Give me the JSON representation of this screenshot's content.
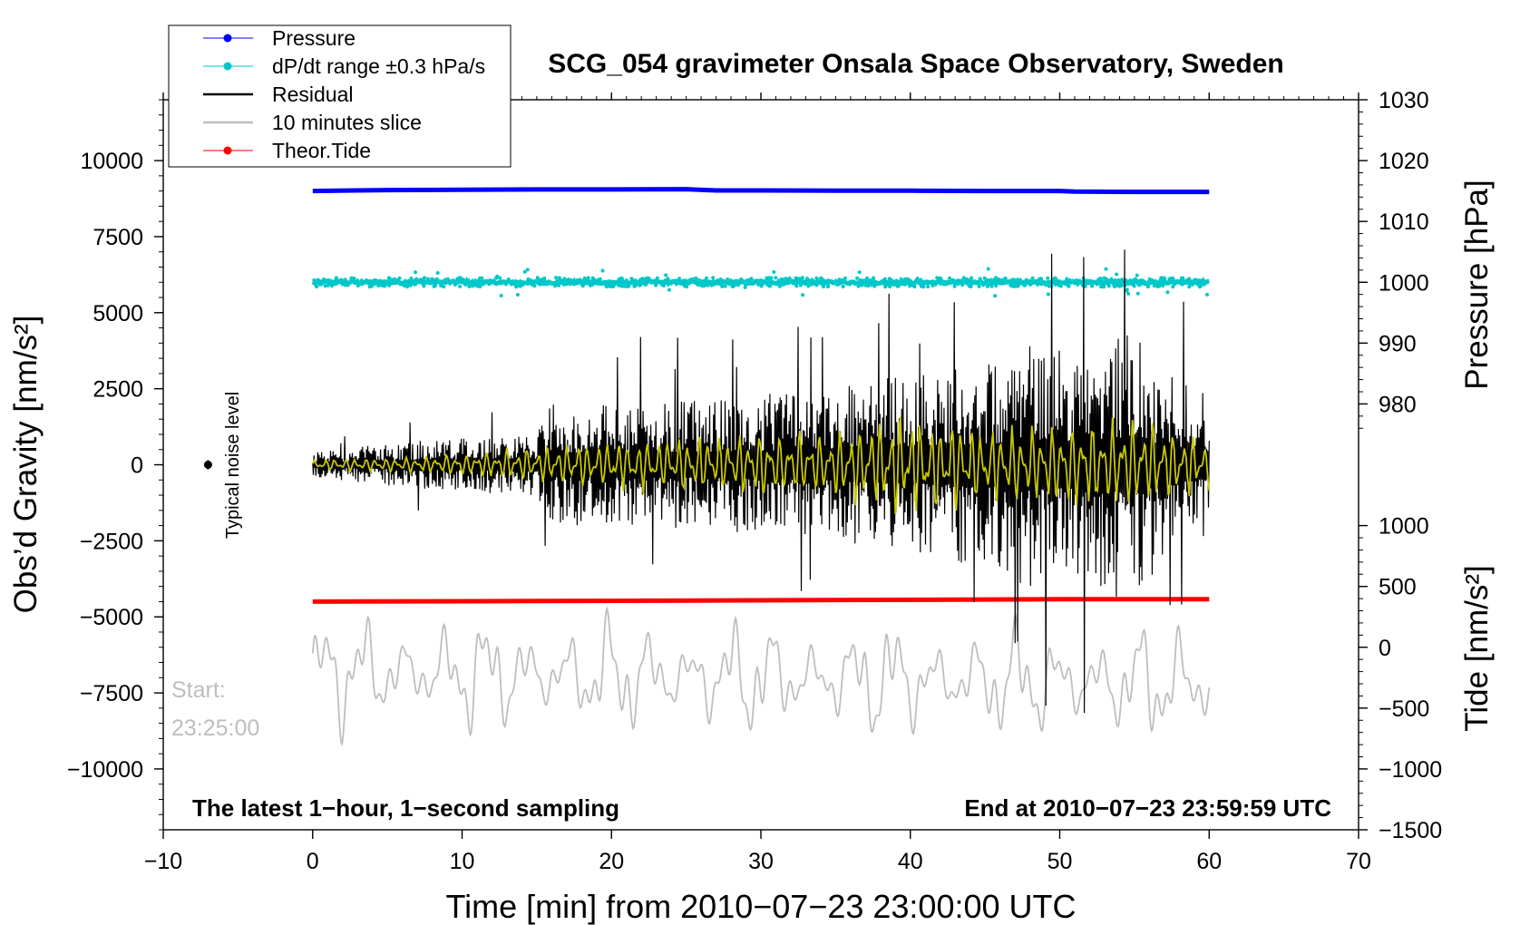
{
  "chart_data": {
    "type": "line",
    "title": "SCG_054 gravimeter Onsala Space Observatory, Sweden",
    "xlabel": "Time [min] from 2010−07−23 23:00:00 UTC",
    "ylabel_left": "Obs’d Gravity [nm/s²]",
    "ylabel_right_top": "Pressure [hPa]",
    "ylabel_right_bottom": "Tide [nm/s²]",
    "xlim": [
      -10,
      70
    ],
    "ylim_left": [
      -12000,
      12000
    ],
    "x_ticks": [
      {
        "v": -10,
        "label": "−10"
      },
      {
        "v": 0,
        "label": "0"
      },
      {
        "v": 10,
        "label": "10"
      },
      {
        "v": 20,
        "label": "20"
      },
      {
        "v": 30,
        "label": "30"
      },
      {
        "v": 40,
        "label": "40"
      },
      {
        "v": 50,
        "label": "50"
      },
      {
        "v": 60,
        "label": "60"
      },
      {
        "v": 70,
        "label": "70"
      }
    ],
    "y_ticks_left": [
      {
        "v": 10000,
        "label": "10000"
      },
      {
        "v": 7500,
        "label": "7500"
      },
      {
        "v": 5000,
        "label": "5000"
      },
      {
        "v": 2500,
        "label": "2500"
      },
      {
        "v": 0,
        "label": "0"
      },
      {
        "v": -2500,
        "label": "−2500"
      },
      {
        "v": -5000,
        "label": "−5000"
      },
      {
        "v": -7500,
        "label": "−7500"
      },
      {
        "v": -10000,
        "label": "−10000"
      }
    ],
    "pressure_axis": {
      "ticks": [
        {
          "v": 1030,
          "label": "1030"
        },
        {
          "v": 1020,
          "label": "1020"
        },
        {
          "v": 1010,
          "label": "1010"
        },
        {
          "v": 1000,
          "label": "1000"
        },
        {
          "v": 990,
          "label": "990"
        },
        {
          "v": 980,
          "label": "980"
        }
      ],
      "map": {
        "hpa": [
          1000,
          1030
        ],
        "left_units": [
          6000,
          12000
        ]
      }
    },
    "tide_axis": {
      "ticks": [
        {
          "v": 1000,
          "label": "1000"
        },
        {
          "v": 500,
          "label": "500"
        },
        {
          "v": 0,
          "label": "0"
        },
        {
          "v": -500,
          "label": "−500"
        },
        {
          "v": -1000,
          "label": "−1000"
        },
        {
          "v": -1500,
          "label": "−1500"
        }
      ],
      "map": {
        "nms2": [
          -1500,
          1000
        ],
        "left_units": [
          -12000,
          -2000
        ]
      }
    },
    "legend": {
      "placement": "top-left",
      "entries": [
        {
          "name": "Pressure",
          "color": "#0000ff",
          "marker": true
        },
        {
          "name": "dP/dt range ±0.3 hPa/s",
          "color": "#00c8c8",
          "marker": true
        },
        {
          "name": "Residual",
          "color": "#000000",
          "marker": false
        },
        {
          "name": "10 minutes slice",
          "color": "#bebebe",
          "marker": false
        },
        {
          "name": "Theor.Tide",
          "color": "#ff0000",
          "marker": true
        }
      ]
    },
    "series": [
      {
        "name": "Pressure",
        "color": "#0000ff",
        "x": [
          0,
          5,
          10,
          15,
          20,
          25,
          27,
          30,
          35,
          40,
          45,
          50,
          51,
          55,
          60
        ],
        "values": [
          9000,
          9030,
          9040,
          9050,
          9050,
          9060,
          9020,
          9020,
          9010,
          9010,
          9000,
          9000,
          8980,
          8970,
          8970
        ]
      },
      {
        "name": "dP/dt range ±0.3 hPa/s",
        "color": "#00c8c8",
        "x": [
          0,
          60
        ],
        "values": [
          6000,
          6000
        ],
        "spread": 150
      },
      {
        "name": "Residual",
        "color": "#000000",
        "x": [
          0,
          5,
          10,
          15,
          16,
          20,
          25,
          30,
          34,
          38,
          40,
          43,
          46,
          48,
          50,
          52,
          54,
          56,
          58,
          60
        ],
        "values": [
          0,
          0,
          0,
          0,
          0,
          0,
          0,
          0,
          0,
          0,
          0,
          0,
          0,
          0,
          0,
          0,
          0,
          0,
          0,
          0
        ],
        "envelope": [
          400,
          700,
          900,
          1000,
          2000,
          2000,
          2100,
          2300,
          2500,
          2800,
          3000,
          3300,
          3500,
          4200,
          3800,
          4000,
          4500,
          3800,
          2800,
          2300
        ]
      },
      {
        "name": "Residual (filtered)",
        "color": "#c8c800",
        "x": [
          0,
          5,
          10,
          15,
          20,
          25,
          30,
          35,
          40,
          45,
          50,
          55,
          60
        ],
        "values": [
          0,
          0,
          0,
          0,
          0,
          0,
          0,
          0,
          0,
          0,
          0,
          0,
          0
        ],
        "envelope": [
          150,
          200,
          300,
          500,
          700,
          800,
          900,
          1000,
          1500,
          1100,
          1200,
          1300,
          700
        ]
      },
      {
        "name": "Theor.Tide",
        "color": "#ff0000",
        "x": [
          0,
          15,
          33,
          50,
          60
        ],
        "values": [
          -4500,
          -4480,
          -4450,
          -4420,
          -4420
        ]
      },
      {
        "name": "10 minutes slice",
        "color": "#bebebe",
        "x": [
          0,
          60
        ],
        "values": [
          -6800,
          -7200
        ],
        "amplitude": 2000
      }
    ],
    "annotations": {
      "noise_label": "Typical noise level",
      "noise_marker": {
        "x": -7,
        "y": 0
      },
      "start_label": "Start:",
      "start_time": "23:25:00",
      "bottom_left": "The latest 1−hour, 1−second sampling",
      "bottom_right": "End at 2010−07−23 23:59:59 UTC"
    }
  }
}
